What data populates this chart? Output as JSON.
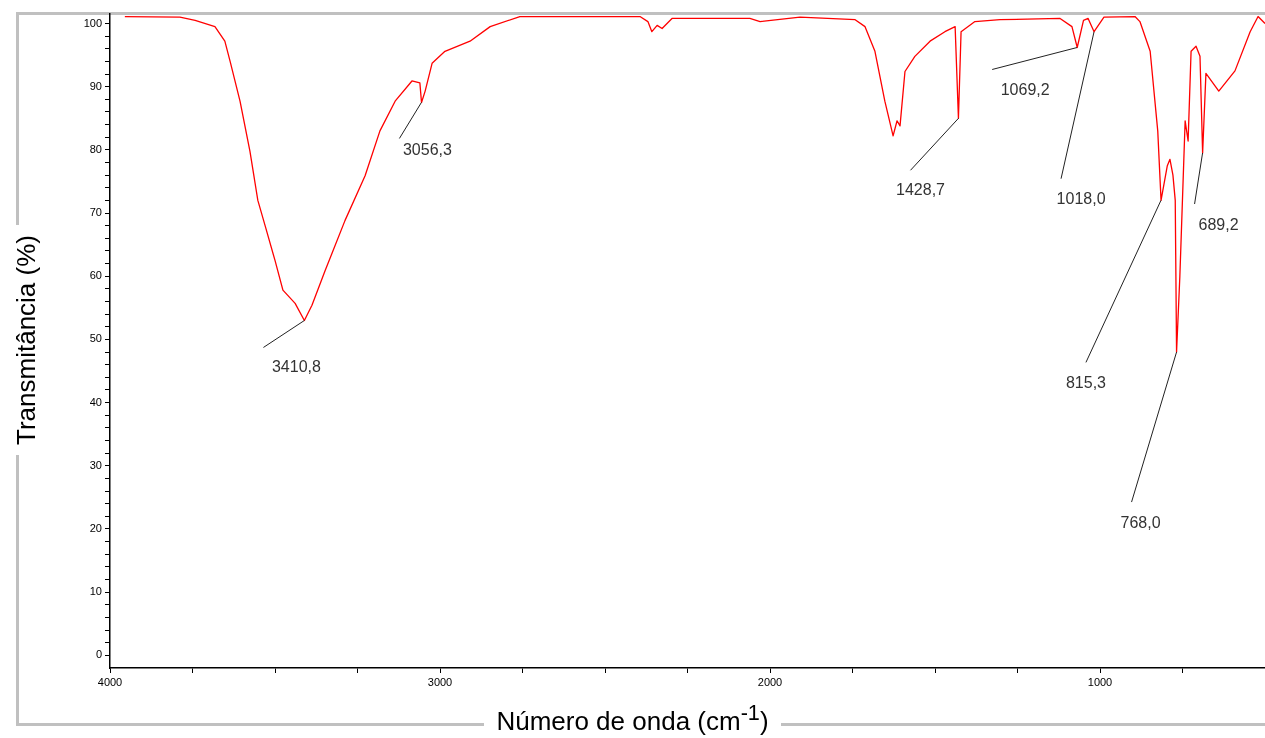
{
  "chart_data": {
    "type": "line",
    "xlabel": "Número de onda (cm$^{-1}$)",
    "ylabel": "Transmitância (%)",
    "xlim": [
      4000,
      500
    ],
    "ylim": [
      -2,
      101.5
    ],
    "xticks": [
      4000,
      {
        "value": 3750,
        "label": null
      },
      {
        "value": 3500,
        "label": null
      },
      {
        "value": 3250,
        "label": null
      },
      3000,
      {
        "value": 2750,
        "label": null
      },
      {
        "value": 2500,
        "label": null
      },
      {
        "value": 2250,
        "label": null
      },
      2000,
      {
        "value": 1750,
        "label": null
      },
      {
        "value": 1500,
        "label": null
      },
      {
        "value": 1250,
        "label": null
      },
      1000,
      {
        "value": 750,
        "label": null
      }
    ],
    "yticks": [
      0,
      {
        "value": 2,
        "label": null
      },
      {
        "value": 4,
        "label": null
      },
      {
        "value": 6,
        "label": null
      },
      {
        "value": 8,
        "label": null
      },
      10,
      {
        "value": 12,
        "label": null
      },
      {
        "value": 14,
        "label": null
      },
      {
        "value": 16,
        "label": null
      },
      {
        "value": 18,
        "label": null
      },
      20,
      {
        "value": 22,
        "label": null
      },
      {
        "value": 24,
        "label": null
      },
      {
        "value": 26,
        "label": null
      },
      {
        "value": 28,
        "label": null
      },
      30,
      {
        "value": 32,
        "label": null
      },
      {
        "value": 34,
        "label": null
      },
      {
        "value": 36,
        "label": null
      },
      {
        "value": 38,
        "label": null
      },
      40,
      {
        "value": 42,
        "label": null
      },
      {
        "value": 44,
        "label": null
      },
      {
        "value": 46,
        "label": null
      },
      {
        "value": 48,
        "label": null
      },
      50,
      {
        "value": 52,
        "label": null
      },
      {
        "value": 54,
        "label": null
      },
      {
        "value": 56,
        "label": null
      },
      {
        "value": 58,
        "label": null
      },
      60,
      {
        "value": 62,
        "label": null
      },
      {
        "value": 64,
        "label": null
      },
      {
        "value": 66,
        "label": null
      },
      {
        "value": 68,
        "label": null
      },
      70,
      {
        "value": 72,
        "label": null
      },
      {
        "value": 74,
        "label": null
      },
      {
        "value": 76,
        "label": null
      },
      {
        "value": 78,
        "label": null
      },
      80,
      {
        "value": 82,
        "label": null
      },
      {
        "value": 84,
        "label": null
      },
      {
        "value": 86,
        "label": null
      },
      {
        "value": 88,
        "label": null
      },
      90,
      {
        "value": 92,
        "label": null
      },
      {
        "value": 94,
        "label": null
      },
      {
        "value": 96,
        "label": null
      },
      {
        "value": 98,
        "label": null
      },
      100
    ],
    "grid": false,
    "legend": false,
    "marker": "none",
    "line_style": "solid",
    "x": [
      3955,
      3788,
      3742,
      3682,
      3652,
      3636,
      3606,
      3576,
      3552,
      3530,
      3500,
      3476,
      3439,
      3411,
      3388,
      3348,
      3288,
      3227,
      3182,
      3136,
      3085,
      3061,
      3056,
      3045,
      3024,
      2985,
      2909,
      2848,
      2758,
      2394,
      2370,
      2358,
      2342,
      2327,
      2297,
      2061,
      2030,
      1909,
      1742,
      1712,
      1682,
      1652,
      1627,
      1615,
      1606,
      1591,
      1561,
      1515,
      1470,
      1439,
      1429,
      1421,
      1379,
      1303,
      1121,
      1085,
      1069,
      1050,
      1036,
      1018,
      988,
      894,
      879,
      848,
      825,
      815,
      796,
      788,
      779,
      772,
      768,
      758,
      742,
      733,
      724,
      709,
      697,
      689,
      679,
      640,
      591,
      545,
      521,
      500
    ],
    "series": [
      {
        "color": "#ff0000",
        "values": [
          101.1,
          101,
          100.5,
          99.5,
          97.2,
          94,
          87.7,
          79.8,
          72,
          68,
          62.5,
          57.8,
          55.7,
          53,
          55.4,
          60.9,
          68.8,
          75.9,
          83,
          87.7,
          90.9,
          90.6,
          87.5,
          89.3,
          93.7,
          95.6,
          97.2,
          99.5,
          101.1,
          101.1,
          100.3,
          98.7,
          99.7,
          99.2,
          100.8,
          100.8,
          100.3,
          101,
          100.6,
          99.5,
          95.6,
          87.7,
          82.2,
          84.6,
          83.8,
          92.4,
          94.8,
          97.2,
          98.7,
          99.5,
          85,
          98.7,
          100.3,
          100.6,
          100.8,
          99.5,
          96.2,
          100.5,
          100.8,
          98.7,
          101,
          101.1,
          100.3,
          95.6,
          83,
          72,
          77.5,
          78.5,
          76,
          72,
          48,
          60,
          84.6,
          81.4,
          95.6,
          96.4,
          94.8,
          79.5,
          92.1,
          89.3,
          92.5,
          98.7,
          101.1,
          100
        ]
      }
    ],
    "annotations": [
      {
        "text": "3410,8",
        "x": 3410.8,
        "y": 53
      },
      {
        "text": "3056,3",
        "x": 3056.3,
        "y": 87.5
      },
      {
        "text": "1428,7",
        "x": 1428.7,
        "y": 85
      },
      {
        "text": "1069,2",
        "x": 1069.2,
        "y": 96.2
      },
      {
        "text": "1018,0",
        "x": 1018,
        "y": 98.7
      },
      {
        "text": "815,3",
        "x": 815.3,
        "y": 72
      },
      {
        "text": "768,0",
        "x": 768,
        "y": 48
      },
      {
        "text": "689,2",
        "x": 689.2,
        "y": 79.5
      }
    ]
  }
}
